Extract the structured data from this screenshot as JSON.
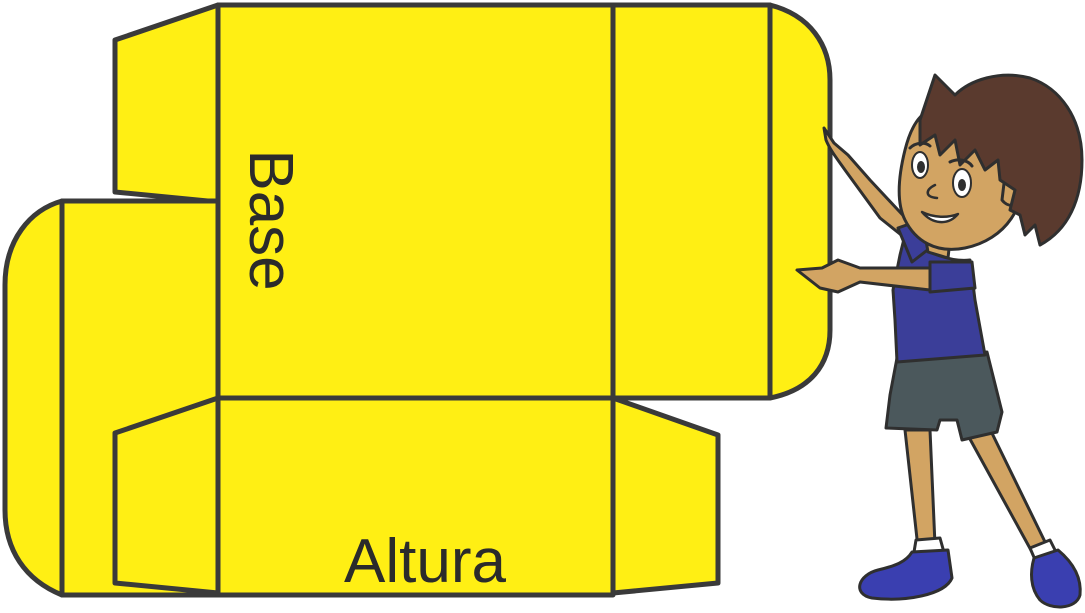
{
  "labels": {
    "base": "Base",
    "altura": "Altura"
  },
  "colors": {
    "box_fill": "#FFEF14",
    "outline": "#3a3a3a",
    "skin": "#D2A463",
    "hair": "#5A3A2E",
    "shirt": "#3B3E99",
    "shorts": "#4B585C",
    "shoes": "#3A3FB0"
  },
  "icons": {
    "figure": "boy-figure"
  }
}
